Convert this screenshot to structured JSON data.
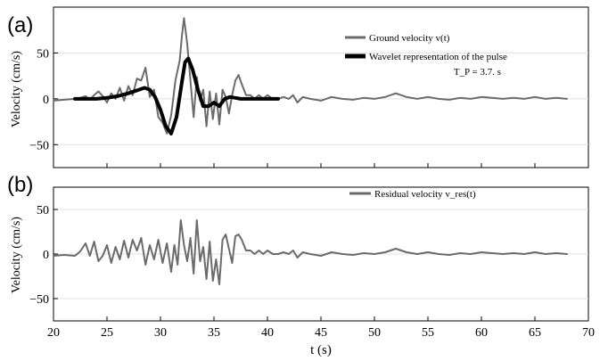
{
  "chart_data": [
    {
      "panel_label": "(a)",
      "type": "line",
      "ylabel": "Velocity (cm/s)",
      "xlim": [
        20,
        70
      ],
      "ylim": [
        -75,
        100
      ],
      "yticks": [
        -50,
        0,
        50
      ],
      "grid": "horizontal",
      "legend_placement": "top-right",
      "legend_note": "T_P = 3.7. s",
      "series": [
        {
          "name": "Ground velocity v(t)",
          "color": "#6b6b6b",
          "x": [
            20.0,
            21.0,
            22.0,
            22.5,
            23.0,
            23.4,
            23.8,
            24.2,
            24.6,
            25.0,
            25.4,
            25.8,
            26.2,
            26.6,
            27.0,
            27.4,
            27.8,
            28.2,
            28.6,
            29.0,
            29.4,
            29.8,
            30.2,
            30.6,
            31.0,
            31.4,
            31.8,
            32.0,
            32.2,
            32.5,
            32.8,
            33.1,
            33.4,
            33.7,
            34.0,
            34.3,
            34.6,
            34.9,
            35.2,
            35.5,
            35.8,
            36.1,
            36.4,
            36.7,
            37.0,
            37.3,
            37.6,
            38.0,
            38.4,
            38.8,
            39.2,
            39.6,
            40.0,
            40.5,
            41.0,
            41.5,
            42.0,
            42.4,
            42.8,
            43.3,
            44.0,
            45.0,
            46.0,
            47.0,
            48.0,
            49.0,
            50.0,
            51.0,
            52.0,
            53.0,
            54.0,
            55.0,
            56.0,
            57.0,
            58.0,
            59.0,
            60.0,
            61.0,
            62.0,
            63.0,
            64.0,
            65.0,
            66.0,
            67.0,
            68.0
          ],
          "values": [
            -2,
            -1,
            0,
            1,
            3,
            -1,
            4,
            8,
            3,
            -4,
            6,
            0,
            12,
            -2,
            14,
            4,
            22,
            20,
            34,
            2,
            10,
            -20,
            -26,
            -38,
            -18,
            20,
            42,
            68,
            88,
            60,
            20,
            -20,
            24,
            -2,
            10,
            -30,
            8,
            -22,
            6,
            -28,
            10,
            2,
            -16,
            4,
            20,
            26,
            16,
            4,
            4,
            0,
            4,
            0,
            4,
            0,
            0,
            2,
            0,
            4,
            -4,
            2,
            0,
            -2,
            2,
            0,
            -1,
            1,
            0,
            2,
            6,
            2,
            0,
            2,
            0,
            -1,
            1,
            0,
            2,
            1,
            0,
            1,
            0,
            2,
            0,
            1,
            0
          ]
        },
        {
          "name": "Wavelet representation of the pulse",
          "color": "#000000",
          "x": [
            22.0,
            24.0,
            25.0,
            26.0,
            27.0,
            28.0,
            28.5,
            29.0,
            29.5,
            30.0,
            30.5,
            31.0,
            31.5,
            32.0,
            32.3,
            32.6,
            33.0,
            33.5,
            34.0,
            34.5,
            35.0,
            35.5,
            36.0,
            36.5,
            37.0,
            37.5,
            38.0,
            39.0,
            40.0,
            41.0
          ],
          "values": [
            0,
            0,
            1,
            3,
            6,
            10,
            12,
            10,
            2,
            -12,
            -30,
            -38,
            -20,
            18,
            40,
            44,
            32,
            10,
            -8,
            -8,
            -4,
            -8,
            0,
            2,
            1,
            0,
            0,
            0,
            0,
            0
          ]
        }
      ]
    },
    {
      "panel_label": "(b)",
      "type": "line",
      "xlabel": "t (s)",
      "ylabel": "Velocity (cm/s)",
      "xlim": [
        20,
        70
      ],
      "xticks": [
        20,
        25,
        30,
        35,
        40,
        45,
        50,
        55,
        60,
        65,
        70
      ],
      "ylim": [
        -75,
        75
      ],
      "yticks": [
        -50,
        0,
        50
      ],
      "grid": "horizontal",
      "legend_placement": "top-right",
      "series": [
        {
          "name": "Residual velocity v_res(t)",
          "color": "#6b6b6b",
          "x": [
            20.0,
            21.0,
            22.0,
            22.5,
            23.0,
            23.4,
            23.8,
            24.2,
            24.6,
            25.0,
            25.4,
            25.8,
            26.2,
            26.6,
            27.0,
            27.4,
            27.8,
            28.2,
            28.6,
            29.0,
            29.4,
            29.8,
            30.2,
            30.6,
            31.0,
            31.3,
            31.6,
            31.9,
            32.2,
            32.5,
            32.8,
            33.1,
            33.4,
            33.7,
            34.0,
            34.3,
            34.6,
            34.9,
            35.2,
            35.5,
            35.8,
            36.1,
            36.4,
            36.7,
            37.0,
            37.3,
            37.6,
            38.0,
            38.4,
            38.8,
            39.2,
            39.6,
            40.0,
            40.5,
            41.0,
            41.5,
            42.0,
            42.4,
            42.8,
            43.3,
            44.0,
            45.0,
            46.0,
            47.0,
            48.0,
            49.0,
            50.0,
            51.0,
            52.0,
            53.0,
            54.0,
            55.0,
            56.0,
            57.0,
            58.0,
            59.0,
            60.0,
            61.0,
            62.0,
            63.0,
            64.0,
            65.0,
            66.0,
            67.0,
            68.0
          ],
          "values": [
            -2,
            -1,
            -2,
            3,
            12,
            -2,
            14,
            -8,
            -2,
            10,
            -10,
            8,
            -6,
            15,
            -4,
            16,
            4,
            18,
            -12,
            10,
            -6,
            16,
            -10,
            12,
            -20,
            10,
            -12,
            38,
            10,
            -8,
            18,
            -22,
            38,
            -8,
            8,
            -28,
            14,
            -30,
            -6,
            -34,
            16,
            22,
            6,
            -10,
            20,
            22,
            16,
            4,
            4,
            0,
            4,
            0,
            4,
            0,
            0,
            2,
            0,
            4,
            -4,
            2,
            0,
            -2,
            2,
            0,
            -1,
            1,
            0,
            2,
            6,
            2,
            0,
            2,
            0,
            -1,
            1,
            0,
            2,
            1,
            0,
            1,
            0,
            2,
            0,
            1,
            0
          ]
        }
      ]
    }
  ]
}
